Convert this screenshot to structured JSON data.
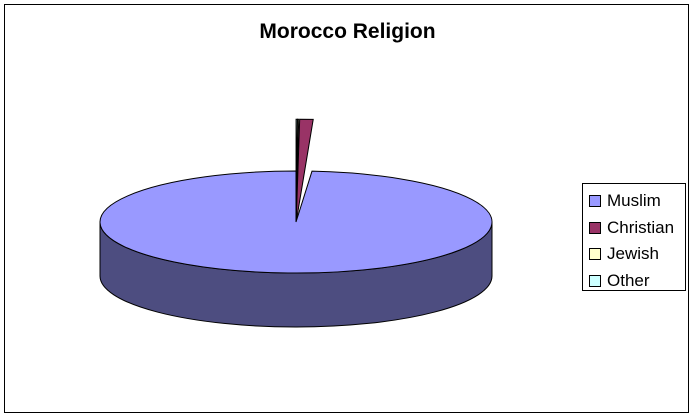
{
  "chart_data": {
    "type": "pie",
    "title": "Morocco Religion",
    "categories": [
      "Muslim",
      "Christian",
      "Jewish",
      "Other"
    ],
    "values": [
      98.7,
      1.1,
      0.1,
      0.1
    ],
    "colors": [
      "#9999ff",
      "#993366",
      "#ffffcc",
      "#ccffff"
    ],
    "side_colors": [
      "#4d4d80",
      "#4d1a33",
      "#808066",
      "#668080"
    ],
    "legend_position": "right",
    "style": "3d-exploded"
  }
}
